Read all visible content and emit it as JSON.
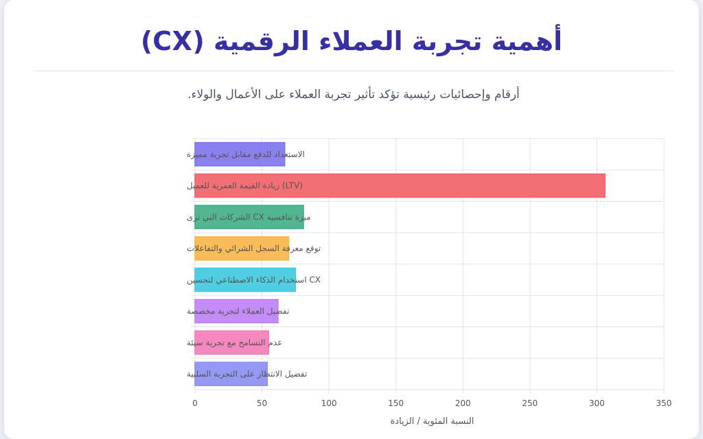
{
  "header": {
    "title": "أهمية تجربة العملاء الرقمية (CX)",
    "subtitle": "أرقام وإحصائيات رئيسية تؤكد تأثير تجربة العملاء على الأعمال والولاء."
  },
  "chart_data": {
    "type": "bar",
    "orientation": "horizontal",
    "categories": [
      "الاستعداد للدفع مقابل تجربة مميزة",
      "(LTV) زيادة القيمة العمرية للعميل",
      "ميزة تنافسية CX الشركات التي ترى",
      "توقع معرفة السجل الشرائي والتفاعلات",
      "CX استخدام الذكاء الاصطناعي لتحسين",
      "تفضيل العملاء لتجربة مخصصة",
      "عدم التسامح مع تجربة سيئة",
      "تفضيل الانتظار على التجربة السلبية"
    ],
    "values": [
      67,
      306,
      81,
      70,
      75,
      62,
      55,
      54
    ],
    "colors": [
      "#7b73ec",
      "#f05f66",
      "#3fae86",
      "#f7b547",
      "#3fc9e0",
      "#bd7ff6",
      "#f47bb8",
      "#8a8ef2"
    ],
    "xlabel": "النسبة المئوية / الزيادة",
    "xlim": [
      0,
      350
    ],
    "xticks": [
      0,
      50,
      100,
      150,
      200,
      250,
      300,
      350
    ],
    "grid": true,
    "legend": "none"
  }
}
